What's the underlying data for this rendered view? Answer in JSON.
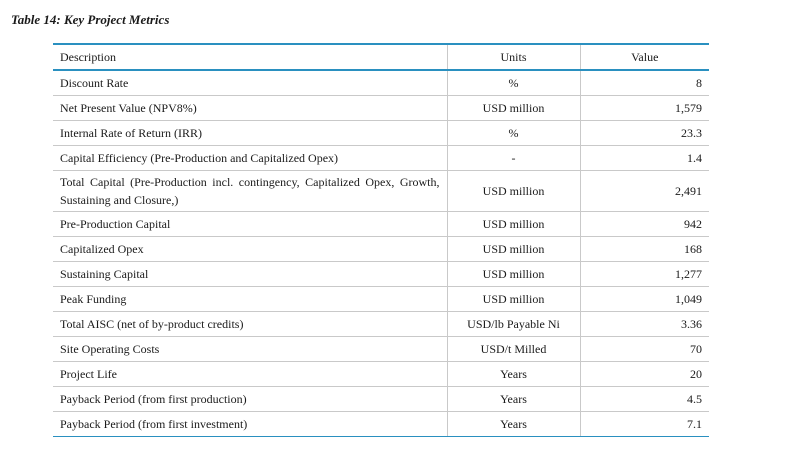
{
  "caption": "Table 14: Key Project Metrics",
  "table": {
    "headers": {
      "description": "Description",
      "units": "Units",
      "value": "Value"
    },
    "rows": [
      {
        "description": "Discount Rate",
        "units": "%",
        "value": "8"
      },
      {
        "description": "Net Present Value (NPV8%)",
        "units": "USD million",
        "value": "1,579"
      },
      {
        "description": "Internal Rate of Return (IRR)",
        "units": "%",
        "value": "23.3"
      },
      {
        "description": "Capital Efficiency (Pre-Production and Capitalized Opex)",
        "units": "-",
        "value": "1.4"
      },
      {
        "description": "Total Capital (Pre-Production incl. contingency, Capitalized Opex, Growth, Sustaining and Closure,)",
        "units": "USD million",
        "value": "2,491"
      },
      {
        "description": "Pre-Production Capital",
        "units": "USD million",
        "value": "942"
      },
      {
        "description": "Capitalized Opex",
        "units": "USD million",
        "value": "168"
      },
      {
        "description": "Sustaining Capital",
        "units": "USD million",
        "value": "1,277"
      },
      {
        "description": "Peak Funding",
        "units": "USD million",
        "value": "1,049"
      },
      {
        "description": "Total AISC (net of by-product credits)",
        "units": "USD/lb Payable Ni",
        "value": "3.36"
      },
      {
        "description": "Site Operating Costs",
        "units": "USD/t Milled",
        "value": "70"
      },
      {
        "description": "Project Life",
        "units": "Years",
        "value": "20"
      },
      {
        "description": "Payback Period (from first production)",
        "units": "Years",
        "value": "4.5"
      },
      {
        "description": "Payback Period (from first investment)",
        "units": "Years",
        "value": "7.1"
      }
    ]
  }
}
